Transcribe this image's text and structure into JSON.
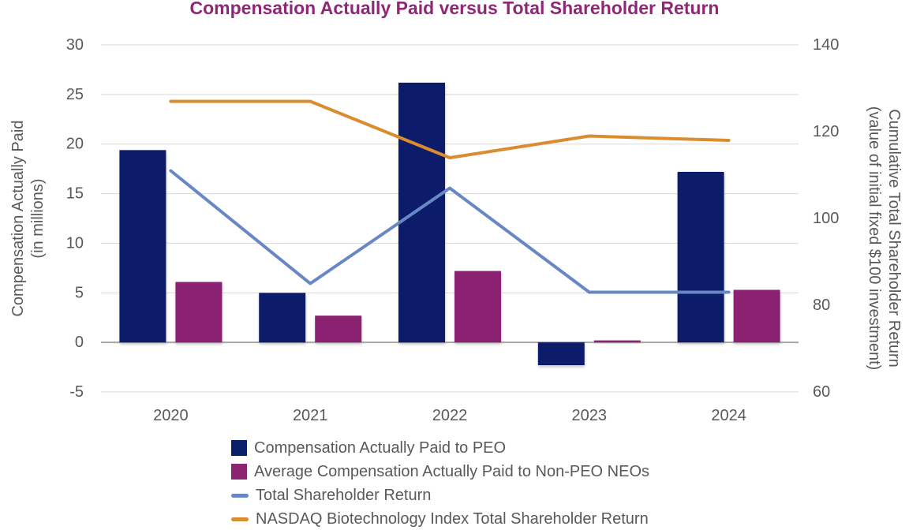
{
  "colors": {
    "title": "#8E2777",
    "axis_text": "#595959",
    "gridline": "#D9D9D9",
    "zero_line": "#A6A6A6",
    "peo_bar": "#0A1F6B",
    "non_peo_bar": "#8B2471",
    "tsr_line": "#6787C5",
    "nasdaq_line": "#DA8C2F"
  },
  "chart_data": {
    "type": "bar",
    "subtype": "combo-bar-line-dual-axis",
    "title": "Compensation Actually Paid versus Total Shareholder Return",
    "categories": [
      "2020",
      "2021",
      "2022",
      "2023",
      "2024"
    ],
    "series": [
      {
        "name": "Compensation Actually Paid to PEO",
        "type": "bar",
        "axis": "left",
        "color": "#0A1F6B",
        "values": [
          19.4,
          5.0,
          26.2,
          -2.3,
          17.2
        ]
      },
      {
        "name": "Average Compensation Actually Paid to Non-PEO NEOs",
        "type": "bar",
        "axis": "left",
        "color": "#8B2471",
        "values": [
          6.1,
          2.7,
          7.2,
          0.2,
          5.3
        ]
      },
      {
        "name": "Total Shareholder Return",
        "type": "line",
        "axis": "right",
        "color": "#6787C5",
        "values": [
          111,
          85,
          107,
          83,
          83
        ]
      },
      {
        "name": "NASDAQ Biotechnology Index Total Shareholder Return",
        "type": "line",
        "axis": "right",
        "color": "#DA8C2F",
        "values": [
          127,
          127,
          114,
          119,
          118
        ]
      }
    ],
    "left_axis": {
      "title_line1": "Compensation Actually Paid",
      "title_line2": "(in millions)",
      "ticks": [
        30,
        25,
        20,
        15,
        10,
        5,
        0,
        -5
      ],
      "range": [
        -5,
        30
      ]
    },
    "right_axis": {
      "title_line1": "Cumulative Total Shareholder Return",
      "title_line2": "(value of initial fixed $100 investment)",
      "ticks": [
        140,
        120,
        100,
        80,
        60
      ],
      "range": [
        60,
        140
      ]
    },
    "grid": true,
    "legend_position": "bottom-left"
  }
}
